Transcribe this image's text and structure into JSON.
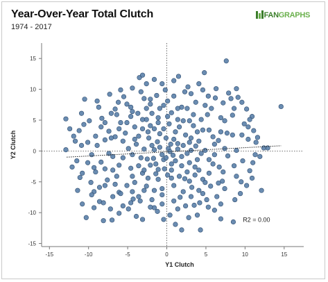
{
  "header": {
    "title": "Year-Over-Year Total Clutch",
    "subtitle": "1974 - 2017"
  },
  "logo": {
    "text_a": "FAN",
    "text_b": "GRAPHS",
    "icon": "fangraphs-logo-icon",
    "color_a": "#3b7d2a",
    "color_b": "#6ab04c"
  },
  "chart_data": {
    "type": "scatter",
    "title": "Year-Over-Year Total Clutch",
    "subtitle": "1974 - 2017",
    "xlabel": "Y1 Clutch",
    "ylabel": "Y2 Clutch",
    "xlim": [
      -16,
      17.5
    ],
    "ylim": [
      -15.5,
      17.5
    ],
    "xticks": [
      -15,
      -10,
      -5,
      0,
      5,
      10,
      15
    ],
    "yticks": [
      -15,
      -10,
      -5,
      0,
      5,
      10,
      15
    ],
    "grid": false,
    "zero_lines": "dotted",
    "point_color": "#5a7fa8",
    "point_edge": "#2f4d70",
    "trendline": {
      "x": [
        -12.8,
        14.6
      ],
      "y": [
        -1.0,
        0.85
      ]
    },
    "annotation": "R2 = 0.00",
    "series": [
      {
        "points": [
          [
            14.6,
            7.2
          ],
          [
            -12.9,
            5.2
          ],
          [
            -12.9,
            0.2
          ],
          [
            12.9,
            0.5
          ],
          [
            12.4,
            0.5
          ],
          [
            7.6,
            14.6
          ],
          [
            4.8,
            12.7
          ],
          [
            -3.5,
            11.9
          ],
          [
            1.5,
            12.1
          ],
          [
            -10.5,
            8.4
          ],
          [
            8.2,
            8.5
          ],
          [
            10.2,
            6.8
          ],
          [
            12.1,
            -6.4
          ],
          [
            -10.3,
            -10.8
          ],
          [
            -7,
            -11.2
          ],
          [
            1.9,
            -12.8
          ],
          [
            4.3,
            -12.8
          ],
          [
            8.5,
            -11.5
          ],
          [
            -1.6,
            -9.2
          ],
          [
            -1.2,
            -9.8
          ],
          [
            -4.3,
            -7.8
          ],
          [
            -8.6,
            -8.2
          ],
          [
            -8.1,
            -8.4
          ],
          [
            -5.6,
            -8.9
          ],
          [
            -4.9,
            -9.4
          ],
          [
            3.5,
            -8.8
          ],
          [
            5.3,
            -9.1
          ],
          [
            9.5,
            -5
          ],
          [
            10.6,
            -3.2
          ],
          [
            11,
            -1.9
          ],
          [
            9.6,
            2.6
          ],
          [
            11.1,
            3.3
          ],
          [
            10.4,
            3.9
          ],
          [
            8.4,
            5.8
          ],
          [
            7.2,
            7.8
          ],
          [
            5.3,
            8.9
          ],
          [
            2.3,
            9.6
          ],
          [
            -1.3,
            9
          ],
          [
            -2.9,
            8.5
          ],
          [
            -5.5,
            8.8
          ],
          [
            -6.6,
            6.8
          ],
          [
            -8.3,
            5.3
          ],
          [
            -10.6,
            4.3
          ],
          [
            -11.2,
            3.3
          ],
          [
            -11.7,
            1.6
          ],
          [
            -11.5,
            -1.6
          ],
          [
            -11.1,
            -4.3
          ],
          [
            -9.7,
            -5.1
          ],
          [
            -9.3,
            -6.6
          ],
          [
            -9.3,
            -2.7
          ],
          [
            -12.4,
            3.6
          ],
          [
            -6.4,
            -4.1
          ],
          [
            -3.1,
            -3.6
          ],
          [
            -6.9,
            -0.9
          ],
          [
            -7.9,
            1.8
          ],
          [
            -5.3,
            2.9
          ],
          [
            -2.6,
            5.1
          ],
          [
            -0.9,
            6.9
          ],
          [
            0.6,
            6.2
          ],
          [
            2.9,
            4.9
          ],
          [
            4.6,
            3.4
          ],
          [
            6.6,
            1.7
          ],
          [
            7.8,
            -0.8
          ],
          [
            7.2,
            -3.4
          ],
          [
            5.6,
            -5.7
          ],
          [
            4.1,
            -6.4
          ],
          [
            1.7,
            -7.5
          ],
          [
            -0.6,
            -7.1
          ],
          [
            -2.6,
            -5.7
          ],
          [
            -4.6,
            -2.8
          ],
          [
            -4.9,
            0.4
          ],
          [
            -3.6,
            2.4
          ],
          [
            -1.6,
            3.6
          ],
          [
            0.3,
            4.4
          ],
          [
            2.4,
            2.6
          ],
          [
            3.7,
            0.8
          ],
          [
            3.9,
            -1.4
          ],
          [
            2.6,
            -3.4
          ],
          [
            0.6,
            -4.4
          ],
          [
            -1.4,
            -3.7
          ],
          [
            -2.5,
            -1.3
          ],
          [
            -1.9,
            0.9
          ],
          [
            -0.1,
            2.1
          ],
          [
            1.4,
            1.2
          ],
          [
            1.9,
            -0.9
          ],
          [
            0.6,
            -2.1
          ],
          [
            -0.6,
            -0.6
          ],
          [
            0.2,
            0.4
          ],
          [
            -3.7,
            6.1
          ],
          [
            -5.9,
            4.6
          ],
          [
            -7.4,
            3.2
          ],
          [
            -8.9,
            0.9
          ],
          [
            -8.4,
            -1.8
          ],
          [
            -7.6,
            -4.7
          ],
          [
            -6.1,
            -6.7
          ],
          [
            -3.6,
            -7.4
          ],
          [
            -1.6,
            -6.4
          ],
          [
            0.9,
            -5.6
          ],
          [
            3.2,
            -5.9
          ],
          [
            5.4,
            -3.6
          ],
          [
            6.1,
            -0.6
          ],
          [
            5.9,
            2.3
          ],
          [
            4.4,
            5.1
          ],
          [
            2.6,
            6.9
          ],
          [
            0.1,
            8.1
          ],
          [
            -2.1,
            7.6
          ],
          [
            -4.6,
            5.6
          ],
          [
            -6.6,
            2.3
          ],
          [
            -6.1,
            -2.3
          ],
          [
            -4.1,
            -5.1
          ],
          [
            -1.1,
            -4.6
          ],
          [
            1.6,
            -4.1
          ],
          [
            4.1,
            -3.1
          ],
          [
            4.9,
            0.1
          ],
          [
            3.1,
            2.1
          ],
          [
            1.1,
            3.1
          ],
          [
            -1.1,
            4.6
          ],
          [
            -3.1,
            3.6
          ],
          [
            -3.9,
            1.1
          ],
          [
            -3.3,
            -1.1
          ],
          [
            -2.1,
            -2.3
          ],
          [
            -0.3,
            -2.9
          ],
          [
            1.1,
            -1.6
          ],
          [
            2.9,
            -1.9
          ],
          [
            3.1,
            0.1
          ],
          [
            2.1,
            0.9
          ],
          [
            0.9,
            1.9
          ],
          [
            -0.9,
            2.8
          ],
          [
            -2.3,
            2.1
          ],
          [
            -2.9,
            0.3
          ],
          [
            -1.7,
            -1.2
          ],
          [
            -0.4,
            -1.4
          ],
          [
            0.8,
            -0.7
          ],
          [
            1.4,
            0.3
          ],
          [
            0.5,
            1.1
          ],
          [
            -1.2,
            1.5
          ],
          [
            -1.6,
            0.2
          ],
          [
            -7.3,
            9.2
          ],
          [
            -4.4,
            10.2
          ],
          [
            -0.6,
            10.9
          ],
          [
            2.7,
            10.4
          ],
          [
            6.3,
            10.1
          ],
          [
            9.1,
            8.7
          ],
          [
            10.9,
            5.6
          ],
          [
            11.6,
            2.2
          ],
          [
            11.3,
            -0.6
          ],
          [
            10.2,
            -5.6
          ],
          [
            8.7,
            -7.9
          ],
          [
            6.1,
            -9.6
          ],
          [
            2.8,
            -10.8
          ],
          [
            -0.4,
            -11.1
          ],
          [
            -3.9,
            -10.6
          ],
          [
            -7.2,
            -9.4
          ],
          [
            -9.6,
            -7.1
          ],
          [
            -10.8,
            -3.6
          ],
          [
            -10.9,
            0.9
          ],
          [
            -9.9,
            4.9
          ],
          [
            -8.7,
            7.1
          ],
          [
            -6.2,
            7.9
          ],
          [
            -3.3,
            9.6
          ],
          [
            -0.2,
            9.9
          ],
          [
            3.1,
            9.3
          ],
          [
            6.2,
            8.6
          ],
          [
            8.6,
            6.9
          ],
          [
            9.9,
            4.4
          ],
          [
            10.4,
            1.9
          ],
          [
            9.7,
            -1.6
          ],
          [
            8.9,
            -4.1
          ],
          [
            7.4,
            -6.1
          ],
          [
            5.1,
            -7.9
          ],
          [
            2.4,
            -8.9
          ],
          [
            -0.6,
            -8.6
          ],
          [
            -3.4,
            -8.1
          ],
          [
            -5.9,
            -6.9
          ],
          [
            -7.9,
            -5.6
          ],
          [
            -9.1,
            -3.4
          ],
          [
            -9.6,
            -0.6
          ],
          [
            -9.1,
            2.4
          ],
          [
            -7.9,
            4.6
          ],
          [
            -6.4,
            5.9
          ],
          [
            -4.6,
            7.1
          ],
          [
            -2.1,
            8.4
          ],
          [
            0.9,
            8.9
          ],
          [
            3.7,
            7.9
          ],
          [
            5.7,
            6.9
          ],
          [
            7.4,
            4.9
          ],
          [
            8.4,
            2.6
          ],
          [
            8.9,
            0.1
          ],
          [
            8.6,
            -2.4
          ],
          [
            7.1,
            -4.9
          ],
          [
            6.4,
            -7.4
          ],
          [
            4.2,
            -8.4
          ],
          [
            1.4,
            -9.4
          ],
          [
            -2.1,
            -9.1
          ],
          [
            -4.6,
            -8.4
          ],
          [
            -6.9,
            -7.4
          ],
          [
            -8.6,
            -5.9
          ],
          [
            -10.1,
            -1.9
          ],
          [
            -10.1,
            1.4
          ],
          [
            -8.4,
            3.9
          ],
          [
            -7.1,
            6.1
          ],
          [
            -5.1,
            7.6
          ],
          [
            -1.9,
            6.1
          ],
          [
            1.9,
            7.1
          ],
          [
            4.9,
            7.4
          ],
          [
            6.9,
            5.4
          ],
          [
            7.7,
            2.9
          ],
          [
            7.4,
            0.4
          ],
          [
            6.7,
            -2.6
          ],
          [
            6.6,
            -5.2
          ],
          [
            4.6,
            -6.9
          ],
          [
            2.1,
            -6.6
          ],
          [
            -0.6,
            -6.1
          ],
          [
            -2.9,
            -6.4
          ],
          [
            -5.1,
            -5.6
          ],
          [
            -6.9,
            -3.1
          ],
          [
            -7.4,
            -0.4
          ],
          [
            -7.1,
            2.1
          ],
          [
            -5.1,
            4.6
          ],
          [
            -3.1,
            5.1
          ],
          [
            -1.1,
            5.4
          ],
          [
            1.4,
            5.1
          ],
          [
            3.4,
            4.1
          ],
          [
            5.4,
            3.4
          ],
          [
            6.1,
            1.1
          ],
          [
            5.4,
            -1.4
          ],
          [
            4.6,
            -4.6
          ],
          [
            2.9,
            -4.9
          ],
          [
            0.1,
            -3.9
          ],
          [
            -2.4,
            -4.4
          ],
          [
            -4.4,
            -4.1
          ],
          [
            -5.6,
            -1.1
          ],
          [
            -5.6,
            1.6
          ],
          [
            -4.1,
            3.9
          ],
          [
            -2.1,
            4.1
          ],
          [
            0.1,
            5.6
          ],
          [
            2.1,
            4.9
          ],
          [
            3.9,
            3.1
          ],
          [
            4.1,
            1.6
          ],
          [
            4.4,
            -0.4
          ],
          [
            3.6,
            -2.6
          ],
          [
            1.9,
            -2.4
          ],
          [
            -0.1,
            -1.1
          ],
          [
            -1.4,
            -2.1
          ],
          [
            -3.6,
            -2.4
          ],
          [
            -4.4,
            -0.6
          ],
          [
            -4.1,
            1.9
          ],
          [
            -2.4,
            3.1
          ],
          [
            -0.4,
            3.6
          ],
          [
            1.6,
            3.9
          ],
          [
            2.9,
            1.4
          ],
          [
            2.6,
            -0.4
          ],
          [
            0.4,
            -0.1
          ],
          [
            -0.9,
            0.6
          ],
          [
            -2.9,
            -3.1
          ],
          [
            -1.1,
            -3.0
          ],
          [
            0.6,
            -3.1
          ],
          [
            2.3,
            -4.5
          ],
          [
            3.6,
            -3.9
          ],
          [
            5.9,
            -2.1
          ],
          [
            6.9,
            3.1
          ],
          [
            5.2,
            5.9
          ],
          [
            3.4,
            5.9
          ],
          [
            1.4,
            6.9
          ],
          [
            -0.4,
            7.4
          ],
          [
            -2.6,
            6.9
          ],
          [
            -4.4,
            6.4
          ],
          [
            -6.1,
            3.6
          ],
          [
            -7.9,
            -2.9
          ],
          [
            -6.6,
            -5.4
          ],
          [
            -4.4,
            -6.6
          ],
          [
            -1.9,
            -7.9
          ],
          [
            0.9,
            -8.1
          ],
          [
            3.1,
            -7.4
          ],
          [
            4.9,
            -5.1
          ],
          [
            -11.4,
            -6.4
          ],
          [
            -10.8,
            -8.6
          ],
          [
            -9.3,
            -9.2
          ],
          [
            -6.1,
            -10.1
          ],
          [
            -3.1,
            -11.1
          ],
          [
            0.4,
            -10.4
          ],
          [
            3.9,
            -10.4
          ],
          [
            6.9,
            -8.6
          ],
          [
            9.4,
            -6.9
          ],
          [
            10.9,
            -4.4
          ],
          [
            11.9,
            -0.9
          ],
          [
            11.4,
            1.4
          ],
          [
            10.6,
            5.1
          ],
          [
            9.6,
            7.9
          ],
          [
            7.9,
            9.4
          ],
          [
            4.1,
            10.9
          ],
          [
            0.9,
            11.4
          ],
          [
            -2.6,
            10.9
          ],
          [
            -5.9,
            9.9
          ],
          [
            -8.9,
            8.1
          ],
          [
            -10.9,
            6.1
          ],
          [
            -11.9,
            2.4
          ],
          [
            -12.1,
            -2.6
          ],
          [
            -3.1,
            12.3
          ],
          [
            4.6,
            9.9
          ],
          [
            8.9,
            10.1
          ],
          [
            -8.1,
            -11.3
          ],
          [
            1.1,
            -11.9
          ],
          [
            6.9,
            -11.0
          ],
          [
            -1.6,
            11.6
          ]
        ]
      }
    ]
  }
}
